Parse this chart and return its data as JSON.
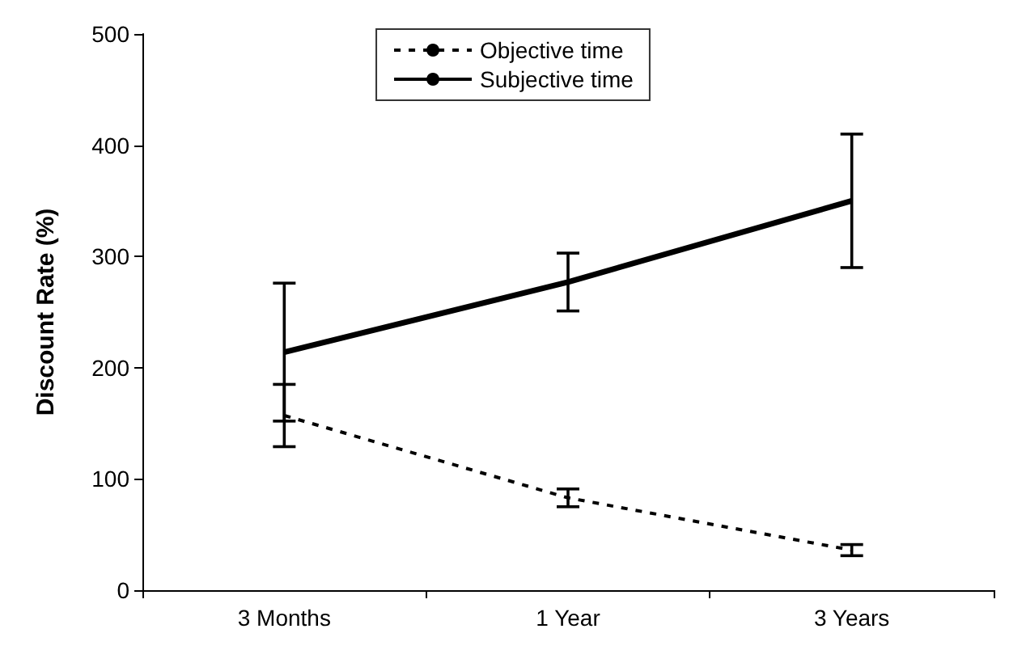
{
  "chart_data": {
    "type": "line",
    "ylabel": "Discount Rate (%)",
    "categories": [
      "3 Months",
      "1 Year",
      "3 Years"
    ],
    "series": [
      {
        "name": "Objective time",
        "color": "#000000",
        "line_style": "dashed",
        "values": [
          157,
          83,
          36
        ],
        "errors": [
          28,
          8,
          5
        ]
      },
      {
        "name": "Subjective time",
        "color": "#000000",
        "line_style": "solid",
        "values": [
          214,
          277,
          350
        ],
        "errors": [
          62,
          26,
          60
        ]
      }
    ],
    "ylim": [
      0,
      500
    ],
    "yticks": [
      0,
      100,
      200,
      300,
      400,
      500
    ],
    "grid": false,
    "legend": "top",
    "marker": "none"
  }
}
